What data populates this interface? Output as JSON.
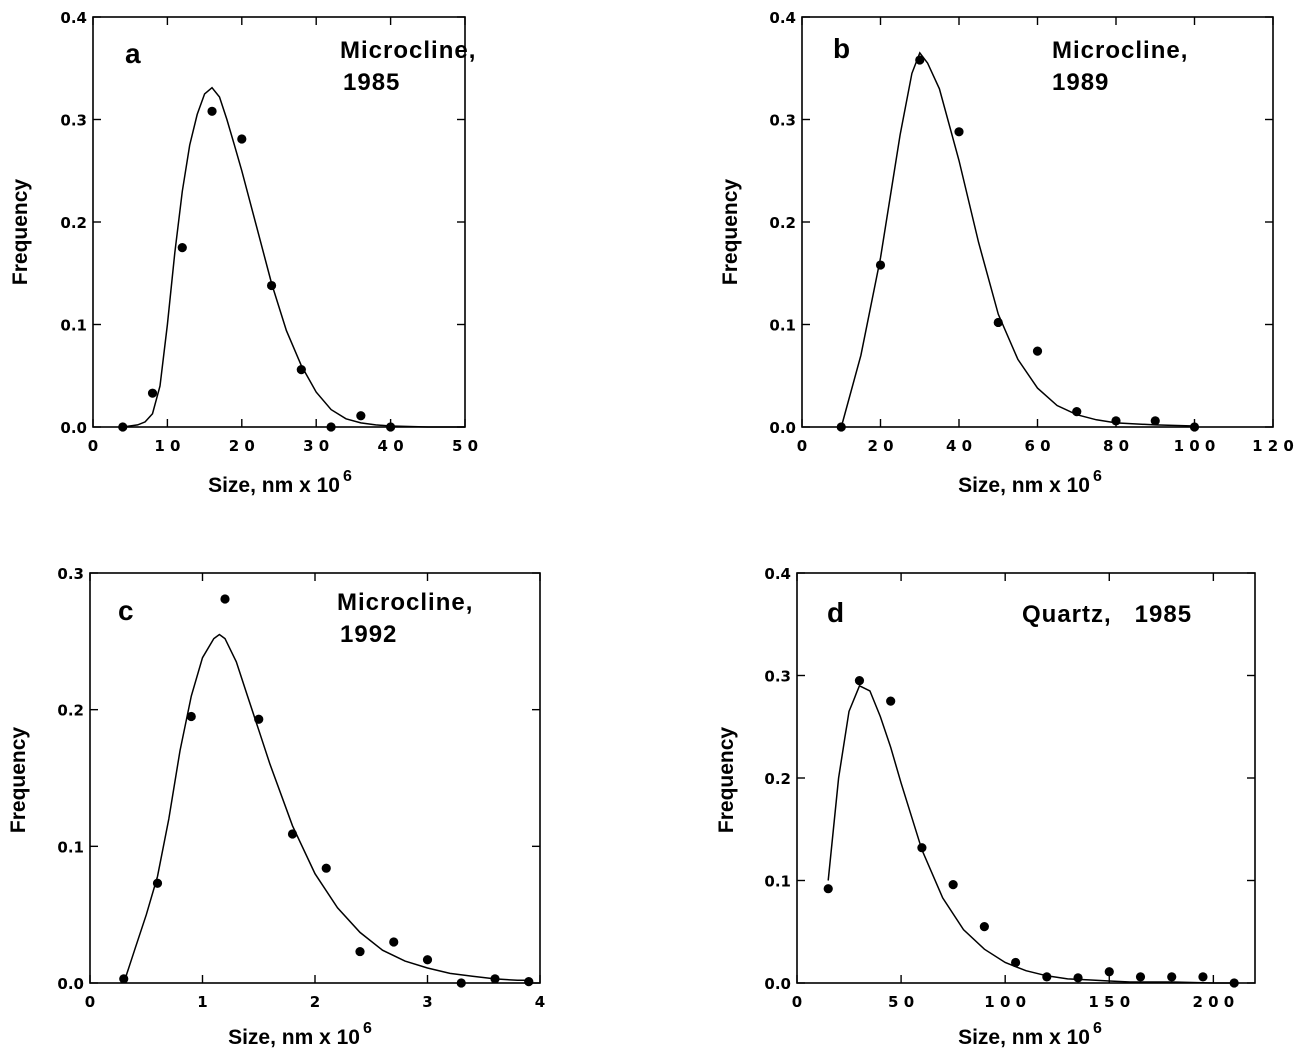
{
  "chart_data": [
    {
      "type": "scatter",
      "panel": "a",
      "annotation": [
        "Microcline,",
        "1985"
      ],
      "xlabel": "Size, nm x 10",
      "xlabel_sup": "6",
      "ylabel": "Frequency",
      "xlim": [
        0,
        50
      ],
      "ylim": [
        0,
        0.4
      ],
      "xticks": [
        0,
        10,
        20,
        30,
        40,
        50
      ],
      "xtick_labels": [
        "0",
        "1 0",
        "2 0",
        "3 0",
        "4 0",
        "5 0"
      ],
      "yticks": [
        0,
        0.1,
        0.2,
        0.3,
        0.4
      ],
      "ytick_labels": [
        "0.0",
        "0.1",
        "0.2",
        "0.3",
        "0.4"
      ],
      "series": [
        {
          "type": "scatter",
          "x": [
            4,
            8,
            12,
            16,
            20,
            24,
            28,
            32,
            36,
            40
          ],
          "y": [
            0.0,
            0.033,
            0.175,
            0.308,
            0.281,
            0.138,
            0.056,
            0.0,
            0.011,
            0.0
          ]
        },
        {
          "type": "line",
          "x": [
            4,
            6,
            7,
            8,
            9,
            10,
            11,
            12,
            13,
            14,
            15,
            16,
            17,
            18,
            19,
            20,
            22,
            24,
            26,
            28,
            30,
            32,
            34,
            36,
            38,
            40,
            45,
            50
          ],
          "y": [
            0.0,
            0.002,
            0.005,
            0.013,
            0.04,
            0.1,
            0.17,
            0.23,
            0.275,
            0.305,
            0.325,
            0.331,
            0.322,
            0.3,
            0.275,
            0.25,
            0.195,
            0.14,
            0.094,
            0.06,
            0.034,
            0.017,
            0.008,
            0.004,
            0.002,
            0.001,
            0.0,
            0.0
          ]
        }
      ]
    },
    {
      "type": "scatter",
      "panel": "b",
      "annotation": [
        "Microcline,",
        "1989"
      ],
      "xlabel": "Size, nm x 10",
      "xlabel_sup": "6",
      "ylabel": "Frequency",
      "xlim": [
        0,
        120
      ],
      "ylim": [
        0,
        0.4
      ],
      "xticks": [
        0,
        20,
        40,
        60,
        80,
        100,
        120
      ],
      "xtick_labels": [
        "0",
        "2 0",
        "4 0",
        "6 0",
        "8 0",
        "1 0 0",
        "1 2 0"
      ],
      "yticks": [
        0,
        0.1,
        0.2,
        0.3,
        0.4
      ],
      "ytick_labels": [
        "0.0",
        "0.1",
        "0.2",
        "0.3",
        "0.4"
      ],
      "series": [
        {
          "type": "scatter",
          "x": [
            10,
            20,
            30,
            40,
            50,
            60,
            70,
            80,
            90,
            100
          ],
          "y": [
            0.0,
            0.158,
            0.358,
            0.288,
            0.102,
            0.074,
            0.015,
            0.006,
            0.006,
            0.0
          ]
        },
        {
          "type": "line",
          "x": [
            10,
            15,
            20,
            25,
            28,
            30,
            32,
            35,
            40,
            45,
            50,
            55,
            60,
            65,
            70,
            75,
            80,
            90,
            100
          ],
          "y": [
            0.0,
            0.07,
            0.165,
            0.285,
            0.345,
            0.365,
            0.355,
            0.33,
            0.26,
            0.18,
            0.11,
            0.066,
            0.038,
            0.021,
            0.012,
            0.007,
            0.004,
            0.002,
            0.001
          ]
        }
      ]
    },
    {
      "type": "scatter",
      "panel": "c",
      "annotation": [
        "Microcline,",
        "1992"
      ],
      "xlabel": "Size, nm x 10",
      "xlabel_sup": "6",
      "ylabel": "Frequency",
      "xlim": [
        0,
        4
      ],
      "ylim": [
        0,
        0.3
      ],
      "xticks": [
        0,
        1,
        2,
        3,
        4
      ],
      "xtick_labels": [
        "0",
        "1",
        "2",
        "3",
        "4"
      ],
      "yticks": [
        0,
        0.1,
        0.2,
        0.3
      ],
      "ytick_labels": [
        "0.0",
        "0.1",
        "0.2",
        "0.3"
      ],
      "series": [
        {
          "type": "scatter",
          "x": [
            0.3,
            0.6,
            0.9,
            1.2,
            1.5,
            1.8,
            2.1,
            2.4,
            2.7,
            3.0,
            3.3,
            3.6,
            3.9
          ],
          "y": [
            0.003,
            0.073,
            0.195,
            0.281,
            0.193,
            0.109,
            0.084,
            0.023,
            0.03,
            0.017,
            0.0,
            0.003,
            0.001
          ]
        },
        {
          "type": "line",
          "x": [
            0.3,
            0.4,
            0.5,
            0.6,
            0.7,
            0.8,
            0.9,
            1.0,
            1.1,
            1.15,
            1.2,
            1.3,
            1.4,
            1.5,
            1.6,
            1.8,
            2.0,
            2.2,
            2.4,
            2.6,
            2.8,
            3.0,
            3.2,
            3.4,
            3.6,
            3.8,
            3.9
          ],
          "y": [
            0.0,
            0.025,
            0.05,
            0.078,
            0.12,
            0.17,
            0.21,
            0.238,
            0.252,
            0.255,
            0.252,
            0.235,
            0.21,
            0.185,
            0.16,
            0.115,
            0.08,
            0.055,
            0.037,
            0.024,
            0.016,
            0.011,
            0.007,
            0.005,
            0.003,
            0.002,
            0.002
          ]
        }
      ]
    },
    {
      "type": "scatter",
      "panel": "d",
      "annotation": [
        "Quartz,   1985"
      ],
      "xlabel": "Size, nm x 10",
      "xlabel_sup": "6",
      "ylabel": "Frequency",
      "xlim": [
        0,
        220
      ],
      "ylim": [
        0,
        0.4
      ],
      "xticks": [
        0,
        50,
        100,
        150,
        200
      ],
      "xtick_labels": [
        "0",
        "5 0",
        "1 0 0",
        "1 5 0",
        "2 0 0"
      ],
      "yticks": [
        0,
        0.1,
        0.2,
        0.3,
        0.4
      ],
      "ytick_labels": [
        "0.0",
        "0.1",
        "0.2",
        "0.3",
        "0.4"
      ],
      "series": [
        {
          "type": "scatter",
          "x": [
            15,
            30,
            45,
            60,
            75,
            90,
            105,
            120,
            135,
            150,
            165,
            180,
            195,
            210
          ],
          "y": [
            0.092,
            0.295,
            0.275,
            0.132,
            0.096,
            0.055,
            0.02,
            0.006,
            0.005,
            0.011,
            0.006,
            0.006,
            0.006,
            0.0
          ]
        },
        {
          "type": "line",
          "x": [
            15,
            20,
            25,
            30,
            35,
            40,
            45,
            50,
            60,
            70,
            80,
            90,
            100,
            110,
            120,
            130,
            140,
            150,
            160,
            180,
            200,
            210
          ],
          "y": [
            0.1,
            0.2,
            0.265,
            0.29,
            0.285,
            0.26,
            0.23,
            0.195,
            0.13,
            0.083,
            0.052,
            0.033,
            0.02,
            0.012,
            0.007,
            0.004,
            0.003,
            0.002,
            0.001,
            0.001,
            0.0,
            0.0
          ]
        }
      ]
    }
  ]
}
